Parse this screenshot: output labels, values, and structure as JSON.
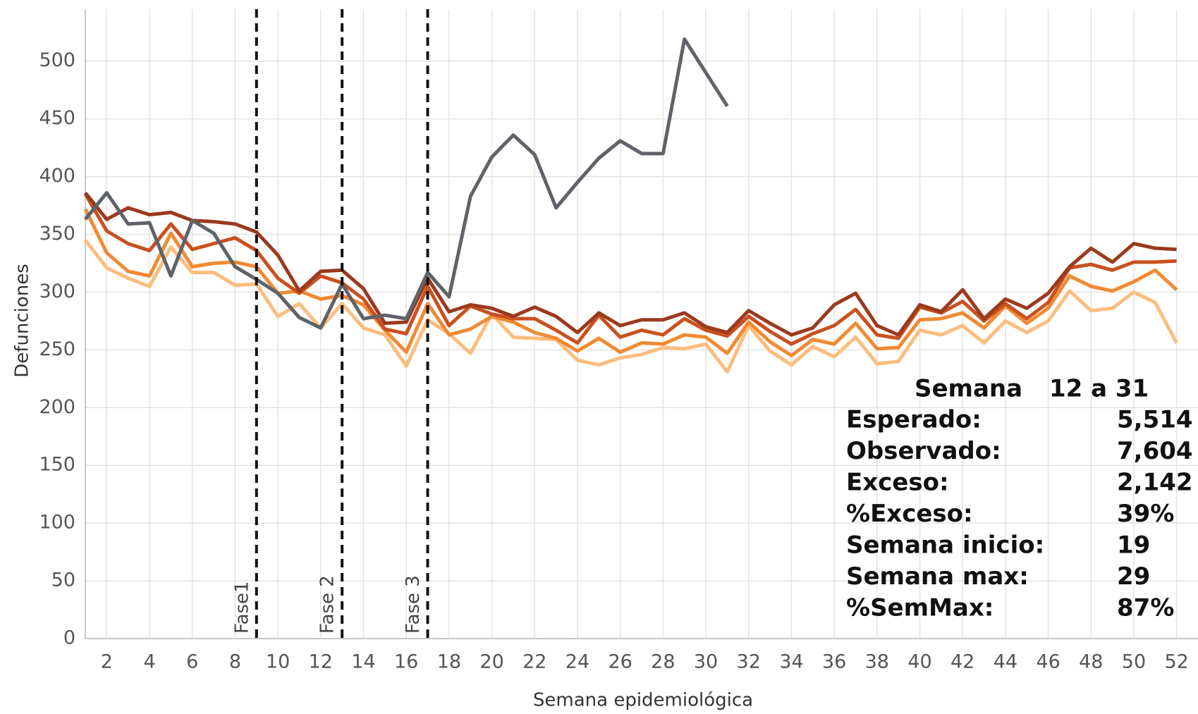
{
  "chart_data": {
    "type": "line",
    "y_label": "Defunciones",
    "x_label": "Semana epidemiológica",
    "x": [
      1,
      2,
      3,
      4,
      5,
      6,
      7,
      8,
      9,
      10,
      11,
      12,
      13,
      14,
      15,
      16,
      17,
      18,
      19,
      20,
      21,
      22,
      23,
      24,
      25,
      26,
      27,
      28,
      29,
      30,
      31,
      32,
      33,
      34,
      35,
      36,
      37,
      38,
      39,
      40,
      41,
      42,
      43,
      44,
      45,
      46,
      47,
      48,
      49,
      50,
      51,
      52
    ],
    "xlim": [
      1,
      53
    ],
    "xticks": [
      2,
      4,
      6,
      8,
      10,
      12,
      14,
      16,
      18,
      20,
      22,
      24,
      26,
      28,
      30,
      32,
      34,
      36,
      38,
      40,
      42,
      44,
      46,
      48,
      50,
      52
    ],
    "ylim": [
      0,
      545
    ],
    "yticks": [
      0,
      50,
      100,
      150,
      200,
      250,
      300,
      350,
      400,
      450,
      500
    ],
    "grid": true,
    "series": [
      {
        "color": "#fdbd7e",
        "values": [
          345,
          321,
          312,
          305,
          339,
          317,
          317,
          306,
          307,
          279,
          290,
          269,
          290,
          269,
          263,
          236,
          276,
          264,
          247,
          281,
          261,
          260,
          259,
          241,
          237,
          243,
          246,
          252,
          251,
          255,
          231,
          271,
          249,
          237,
          253,
          244,
          261,
          238,
          240,
          267,
          263,
          271,
          256,
          275,
          265,
          275,
          301,
          284,
          286,
          300,
          291,
          256
        ]
      },
      {
        "color": "#f08a33",
        "values": [
          372,
          334,
          318,
          314,
          351,
          322,
          325,
          326,
          322,
          299,
          301,
          294,
          297,
          289,
          267,
          248,
          290,
          263,
          268,
          279,
          274,
          265,
          260,
          249,
          260,
          248,
          256,
          255,
          263,
          261,
          247,
          274,
          257,
          245,
          259,
          255,
          273,
          251,
          252,
          276,
          277,
          282,
          269,
          288,
          273,
          286,
          314,
          305,
          301,
          309,
          319,
          302
        ]
      },
      {
        "color": "#c9501f",
        "values": [
          385,
          353,
          342,
          336,
          359,
          337,
          342,
          347,
          336,
          312,
          299,
          314,
          308,
          294,
          268,
          264,
          305,
          271,
          288,
          281,
          277,
          277,
          267,
          256,
          280,
          261,
          267,
          263,
          277,
          267,
          262,
          279,
          266,
          255,
          264,
          271,
          285,
          263,
          260,
          287,
          282,
          292,
          275,
          290,
          277,
          291,
          321,
          324,
          319,
          326,
          326,
          327
        ]
      },
      {
        "color": "#9b3a1e",
        "values": [
          386,
          363,
          373,
          367,
          369,
          362,
          361,
          359,
          352,
          332,
          301,
          318,
          319,
          303,
          273,
          274,
          312,
          283,
          289,
          286,
          279,
          287,
          279,
          265,
          282,
          271,
          276,
          276,
          282,
          270,
          265,
          284,
          273,
          263,
          269,
          289,
          299,
          271,
          263,
          289,
          283,
          302,
          277,
          294,
          286,
          299,
          322,
          338,
          326,
          342,
          338,
          337
        ]
      },
      {
        "color": "#5f6369",
        "values": [
          363,
          386,
          359,
          360,
          314,
          362,
          351,
          322,
          311,
          299,
          278,
          269,
          307,
          277,
          280,
          277,
          317,
          296,
          383,
          417,
          436,
          419,
          373,
          395,
          416,
          431,
          420,
          420,
          519,
          490,
          461,
          null,
          null,
          null,
          null,
          null,
          null,
          null,
          null,
          null,
          null,
          null,
          null,
          null,
          null,
          null,
          null,
          null,
          null,
          null,
          null,
          null
        ]
      }
    ],
    "phases": [
      {
        "week": 9,
        "label": "Fase1"
      },
      {
        "week": 13,
        "label": "Fase 2"
      },
      {
        "week": 17,
        "label": "Fase 3"
      }
    ],
    "stats": {
      "title": "Semana",
      "range": "12 a 31",
      "rows": [
        [
          "Esperado:",
          "5,514"
        ],
        [
          "Observado:",
          "7,604"
        ],
        [
          "Exceso:",
          "2,142"
        ],
        [
          "%Exceso:",
          "39%"
        ],
        [
          "Semana inicio:",
          "19"
        ],
        [
          "Semana max:",
          "29"
        ],
        [
          "%SemMax:",
          "87%"
        ]
      ]
    }
  }
}
